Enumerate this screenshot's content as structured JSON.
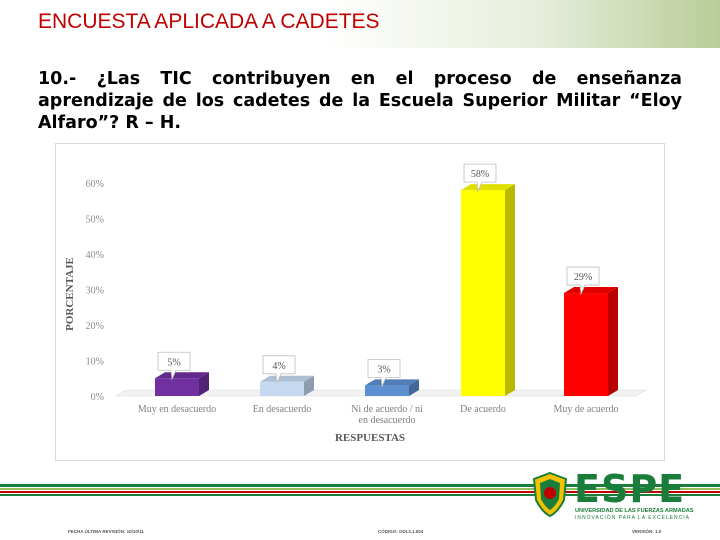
{
  "slide": {
    "title": "ENCUESTA APLICADA A CADETES",
    "question": "10.- ¿Las TIC contribuyen en el proceso de enseñanza aprendizaje de los cadetes de la Escuela Superior Militar “Eloy Alfaro”? R – H."
  },
  "chart_data": {
    "type": "bar",
    "categories": [
      "Muy en desacuerdo",
      "En desacuerdo",
      "Ni de acuerdo / ni en desacuerdo",
      "De acuerdo",
      "Muy de acuerdo"
    ],
    "values": [
      5,
      4,
      3,
      58,
      29
    ],
    "data_labels": [
      "5%",
      "4%",
      "3%",
      "58%",
      "29%"
    ],
    "bar_colors": [
      "#7030a0",
      "#c5d9f1",
      "#5b8fd0",
      "#ffff00",
      "#ff0000"
    ],
    "xlabel": "RESPUESTAS",
    "ylabel": "PORCENTAJE",
    "ylim": [
      0,
      60
    ],
    "ytick_labels": [
      "0%",
      "10%",
      "20%",
      "30%",
      "40%",
      "50%",
      "60%"
    ],
    "grid": false,
    "style": "3d-column"
  },
  "footer": {
    "revision": "FECHA ÚLTIMA REVISIÓN: 10/10/11",
    "code": "CÓDIGO: GDI.3.1.004",
    "version": "VERSIÓN: 1.0",
    "logo_text": "ESPE",
    "university": "UNIVERSIDAD DE LAS FUERZAS ARMADAS",
    "slogan": "INNOVACIÓN PARA LA EXCELENCIA"
  }
}
